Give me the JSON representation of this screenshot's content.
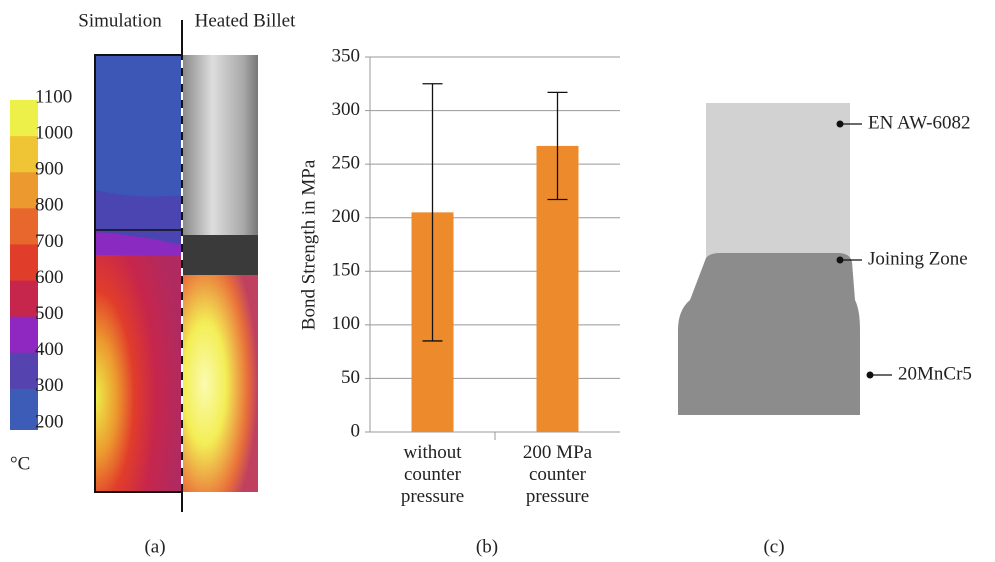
{
  "panel_a": {
    "left_title": "Simulation",
    "right_title": "Heated Billet",
    "colorbar_ticks": [
      1100,
      1000,
      900,
      800,
      700,
      600,
      500,
      400,
      300,
      200
    ],
    "colorbar_colors": [
      "#eef04a",
      "#efc535",
      "#ec9a2f",
      "#e8672c",
      "#e13d2b",
      "#c6264c",
      "#8e28c0",
      "#5544b0",
      "#3d5cb8"
    ],
    "unit": "°C",
    "caption": "(a)"
  },
  "chart_data": {
    "type": "bar",
    "y_label": "Bond Strength in MPa",
    "categories": [
      "without\ncounter\npressure",
      "200 MPa\ncounter\npressure"
    ],
    "values": [
      205,
      267
    ],
    "errors": [
      120,
      50
    ],
    "color": "#ed8b2c",
    "ylim": [
      0,
      350
    ],
    "yticks": [
      0,
      50,
      100,
      150,
      200,
      250,
      300,
      350
    ],
    "grid": true,
    "caption": "(b)"
  },
  "panel_c": {
    "labels": [
      "EN AW-6082",
      "Joining Zone",
      "20MnCr5"
    ],
    "caption": "(c)"
  }
}
